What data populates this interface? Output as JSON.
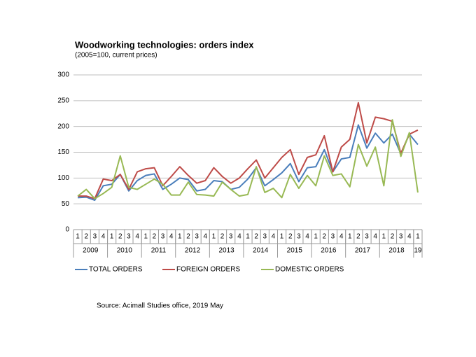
{
  "chart_data": {
    "type": "line",
    "title": "Woodworking technologies: orders index",
    "subtitle": "(2005=100, current prices)",
    "source": "Source: Acimall Studies office, 2019 May",
    "categories": [
      "1",
      "2",
      "3",
      "4",
      "1",
      "2",
      "3",
      "4",
      "1",
      "2",
      "3",
      "4",
      "1",
      "2",
      "3",
      "4",
      "1",
      "2",
      "3",
      "4",
      "1",
      "2",
      "3",
      "4",
      "1",
      "2",
      "3",
      "4",
      "1",
      "2",
      "3",
      "4",
      "1",
      "2",
      "3",
      "4",
      "1",
      "2",
      "3",
      "4",
      "1"
    ],
    "years": [
      "2009",
      "2010",
      "2011",
      "2012",
      "2013",
      "2014",
      "2015",
      "2016",
      "2017",
      "2018",
      "19"
    ],
    "series": [
      {
        "name": "TOTAL ORDERS",
        "color": "#4a7ebb",
        "values": [
          62,
          63,
          57,
          85,
          88,
          107,
          75,
          95,
          105,
          108,
          78,
          88,
          100,
          97,
          75,
          78,
          95,
          93,
          78,
          82,
          98,
          120,
          85,
          97,
          110,
          128,
          93,
          120,
          122,
          155,
          112,
          137,
          140,
          203,
          158,
          187,
          168,
          185,
          147,
          185,
          165
        ]
      },
      {
        "name": "FOREIGN ORDERS",
        "color": "#be4b48",
        "values": [
          65,
          65,
          60,
          98,
          95,
          107,
          78,
          112,
          118,
          120,
          85,
          103,
          122,
          105,
          90,
          95,
          120,
          103,
          90,
          100,
          118,
          135,
          100,
          120,
          140,
          155,
          107,
          140,
          145,
          182,
          112,
          160,
          175,
          246,
          168,
          218,
          215,
          210,
          148,
          185,
          193
        ]
      },
      {
        "name": "DOMESTIC ORDERS",
        "color": "#98b954",
        "values": [
          65,
          78,
          60,
          70,
          82,
          143,
          82,
          78,
          88,
          98,
          88,
          67,
          67,
          92,
          68,
          67,
          65,
          92,
          78,
          65,
          68,
          122,
          72,
          80,
          62,
          107,
          80,
          105,
          85,
          143,
          105,
          108,
          83,
          165,
          123,
          160,
          85,
          213,
          142,
          188,
          72
        ]
      }
    ],
    "ylim": [
      0,
      300
    ],
    "yticks": [
      0,
      50,
      100,
      150,
      200,
      250,
      300
    ],
    "grid": true
  }
}
